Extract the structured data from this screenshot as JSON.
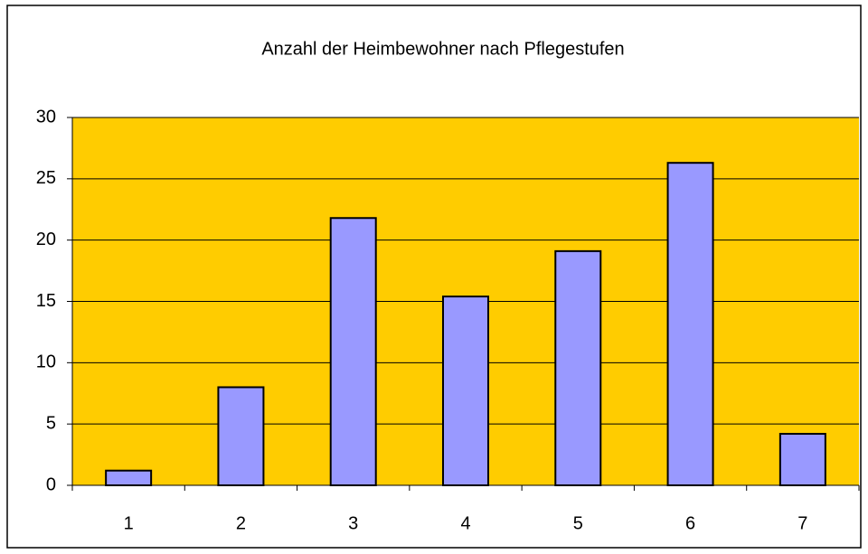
{
  "chart_data": {
    "type": "bar",
    "title": "Anzahl der Heimbewohner nach Pflegestufen",
    "categories": [
      "1",
      "2",
      "3",
      "4",
      "5",
      "6",
      "7"
    ],
    "values": [
      1.2,
      8,
      21.8,
      15.4,
      19.1,
      26.3,
      4.2
    ],
    "color": "#9999ff",
    "plot_background": "#ffcc00",
    "ylim": [
      0,
      30
    ],
    "yticks": [
      0,
      5,
      10,
      15,
      20,
      25,
      30
    ],
    "grid": true
  }
}
